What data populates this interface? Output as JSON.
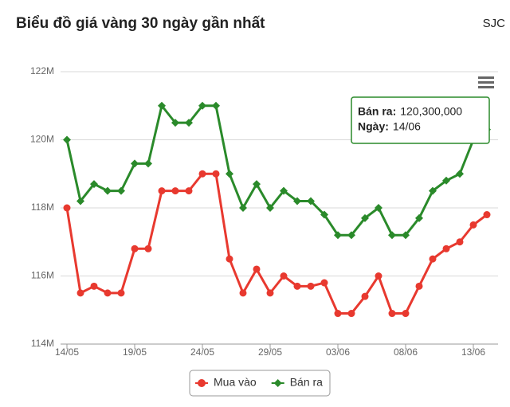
{
  "chart_data": {
    "type": "line",
    "title": "Biểu đồ giá vàng 30 ngày gần nhất",
    "subtitle": "SJC",
    "categories": [
      "14/05",
      null,
      null,
      null,
      null,
      "19/05",
      null,
      null,
      null,
      null,
      "24/05",
      null,
      null,
      null,
      null,
      "29/05",
      null,
      null,
      null,
      null,
      "03/06",
      null,
      null,
      null,
      null,
      "08/06",
      null,
      null,
      null,
      null,
      "13/06",
      null
    ],
    "series": [
      {
        "name": "Mua vào",
        "color": "#e8392f",
        "marker": "circle",
        "values": [
          118000000,
          115500000,
          115700000,
          115500000,
          115500000,
          116800000,
          116800000,
          118500000,
          118500000,
          118500000,
          119000000,
          119000000,
          116500000,
          115500000,
          116200000,
          115500000,
          116000000,
          115700000,
          115700000,
          115800000,
          114900000,
          114900000,
          115400000,
          116000000,
          114900000,
          114900000,
          115700000,
          116500000,
          116800000,
          117000000,
          117500000,
          117800000
        ]
      },
      {
        "name": "Bán ra",
        "color": "#2a8a2a",
        "marker": "diamond",
        "values": [
          120000000,
          118200000,
          118700000,
          118500000,
          118500000,
          119300000,
          119300000,
          121000000,
          120500000,
          120500000,
          121000000,
          121000000,
          119000000,
          118000000,
          118700000,
          118000000,
          118500000,
          118200000,
          118200000,
          117800000,
          117200000,
          117200000,
          117700000,
          118000000,
          117200000,
          117200000,
          117700000,
          118500000,
          118800000,
          119000000,
          120000000,
          120300000
        ]
      }
    ],
    "ylim": [
      114000000,
      122000000
    ],
    "yticks": [
      {
        "value": 114000000,
        "label": "114M"
      },
      {
        "value": 116000000,
        "label": "116M"
      },
      {
        "value": 118000000,
        "label": "118M"
      },
      {
        "value": 120000000,
        "label": "120M"
      },
      {
        "value": 122000000,
        "label": "122M"
      }
    ],
    "grid": true,
    "legend": "bottom",
    "tooltip": {
      "series_label": "Bán ra:",
      "value": 120300000,
      "value_label": "120,300,000",
      "date_key": "Ngày:",
      "date": "14/06"
    }
  }
}
